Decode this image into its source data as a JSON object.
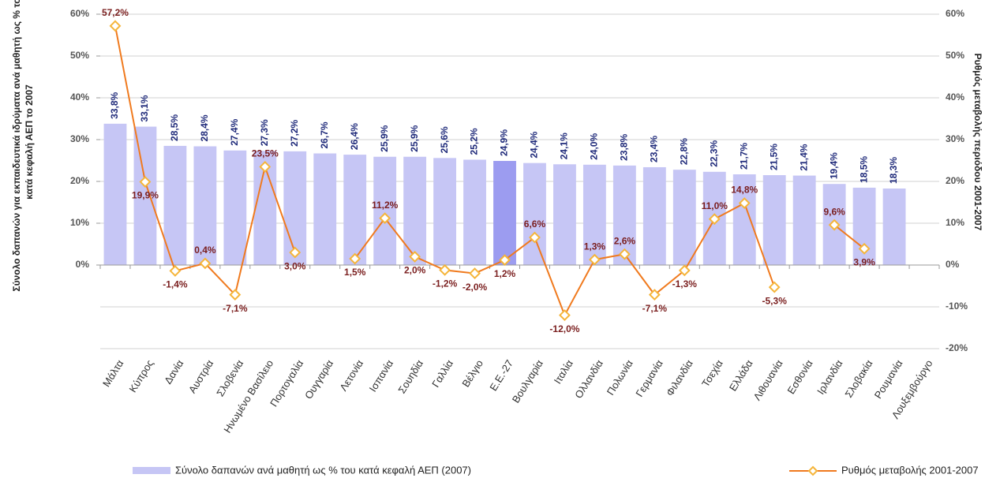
{
  "chart_data": {
    "type": "bar_line",
    "y_label_lines": [
      "Σύνολο δαπανών για εκπαιδευτικά ιδρύματα ανά μαθητή ως % του",
      "κατά κεφαλή ΑΕΠ το 2007"
    ],
    "y2_label": "Ρυθμός μεταβολής περιόδου 2001-2007",
    "categories": [
      "Μάλτα",
      "Κύπρος",
      "Δανία",
      "Αυστρία",
      "Σλοβενία",
      "Ηνωμένο Βασίλειο",
      "Πορτογαλία",
      "Ουγγαρία",
      "Λετονία",
      "Ισπανία",
      "Σουηδία",
      "Γαλλία",
      "Βέλγιο",
      "Ε.Ε.-27",
      "Βουλγαρία",
      "Ιταλία",
      "Ολλανδία",
      "Πολωνία",
      "Γερμανία",
      "Φιλανδία",
      "Τσεχία",
      "Ελλάδα",
      "Λιθουανία",
      "Εσθονία",
      "Ιρλανδία",
      "Σλοβακία",
      "Ρουμανία",
      "Λουξεμβούργο"
    ],
    "series": [
      {
        "name": "Σύνολο δαπανών ανά μαθητή ως % του κατά κεφαλή ΑΕΠ (2007)",
        "color": "#c6c6f5",
        "highlight_color": "#9c9cf0",
        "highlight_index": 13,
        "values": [
          33.8,
          33.1,
          28.5,
          28.4,
          27.4,
          27.3,
          27.2,
          26.7,
          26.4,
          25.9,
          25.9,
          25.6,
          25.2,
          24.9,
          24.4,
          24.1,
          24.0,
          23.8,
          23.4,
          22.8,
          22.3,
          21.7,
          21.5,
          21.4,
          19.4,
          18.5,
          18.3,
          null
        ],
        "value_labels": [
          "33,8%",
          "33,1%",
          "28,5%",
          "28,4%",
          "27,4%",
          "27,3%",
          "27,2%",
          "26,7%",
          "26,4%",
          "25,9%",
          "25,9%",
          "25,6%",
          "25,2%",
          "24,9%",
          "24,4%",
          "24,1%",
          "24,0%",
          "23,8%",
          "23,4%",
          "22,8%",
          "22,3%",
          "21,7%",
          "21,5%",
          "21,4%",
          "19,4%",
          "18,5%",
          "18,3%",
          null
        ]
      },
      {
        "name": "Ρυθμός μεταβολής 2001-2007",
        "color": "#f07a1e",
        "marker_color": "#f5b53a",
        "axis": "y2",
        "values": [
          57.2,
          19.9,
          -1.4,
          0.4,
          -7.1,
          23.5,
          3.0,
          null,
          1.5,
          11.2,
          2.0,
          -1.2,
          -2.0,
          1.2,
          6.6,
          -12.0,
          1.3,
          2.6,
          -7.1,
          -1.3,
          11.0,
          14.8,
          -5.3,
          null,
          9.6,
          3.9,
          null,
          null
        ],
        "value_labels": [
          "57,2%",
          "19,9%",
          "-1,4%",
          "0,4%",
          "-7,1%",
          "23,5%",
          "3,0%",
          null,
          "1,5%",
          "11,2%",
          "2,0%",
          "-1,2%",
          "-2,0%",
          "1,2%",
          "6,6%",
          "-12,0%",
          "1,3%",
          "2,6%",
          "-7,1%",
          "-1,3%",
          "11,0%",
          "14,8%",
          "-5,3%",
          null,
          "9,6%",
          "3,9%",
          null,
          null
        ]
      }
    ],
    "ylim": [
      -20,
      60
    ],
    "yticks": [
      {
        "value": 0,
        "label": "0%"
      },
      {
        "value": 10,
        "label": "10%"
      },
      {
        "value": 20,
        "label": "20%"
      },
      {
        "value": 30,
        "label": "30%"
      },
      {
        "value": 40,
        "label": "40%"
      },
      {
        "value": 50,
        "label": "50%"
      },
      {
        "value": 60,
        "label": "60%"
      }
    ],
    "y2lim": [
      -20,
      60
    ],
    "y2ticks": [
      {
        "value": -20,
        "label": "-20%"
      },
      {
        "value": -10,
        "label": "-10%"
      },
      {
        "value": 0,
        "label": "0%"
      },
      {
        "value": 10,
        "label": "10%"
      },
      {
        "value": 20,
        "label": "20%"
      },
      {
        "value": 30,
        "label": "30%"
      },
      {
        "value": 40,
        "label": "40%"
      },
      {
        "value": 50,
        "label": "50%"
      },
      {
        "value": 60,
        "label": "60%"
      }
    ],
    "grid": true,
    "legend": "bottom"
  }
}
